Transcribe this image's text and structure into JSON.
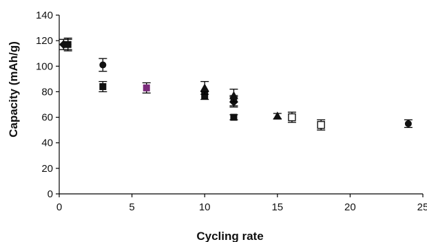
{
  "chart_data": {
    "type": "scatter",
    "title": "",
    "xlabel": "Cycling rate",
    "ylabel": "Capacity (mAh/g)",
    "xlim": [
      0,
      25
    ],
    "ylim": [
      0,
      140
    ],
    "x_ticks": [
      0,
      5,
      10,
      15,
      20,
      25
    ],
    "y_ticks": [
      0,
      20,
      40,
      60,
      80,
      100,
      120,
      140
    ],
    "grid": false,
    "legend": "none",
    "series": [
      {
        "marker": "circle",
        "color": "#111111",
        "points": [
          {
            "x": 0.6,
            "y": 117,
            "err": 5
          },
          {
            "x": 3,
            "y": 101,
            "err": 5
          },
          {
            "x": 12,
            "y": 73,
            "err": 4
          },
          {
            "x": 24,
            "y": 55,
            "err": 3
          }
        ]
      },
      {
        "marker": "diamond",
        "color": "#111111",
        "points": [
          {
            "x": 0.3,
            "y": 117,
            "err": 4
          },
          {
            "x": 12,
            "y": 72,
            "err": 4
          }
        ]
      },
      {
        "marker": "square",
        "color": "#111111",
        "points": [
          {
            "x": 0.6,
            "y": 117,
            "err": 4
          },
          {
            "x": 3,
            "y": 84,
            "err": 4
          },
          {
            "x": 10,
            "y": 77,
            "err": 3
          },
          {
            "x": 12,
            "y": 60,
            "err": 2
          }
        ]
      },
      {
        "marker": "triangle",
        "color": "#111111",
        "points": [
          {
            "x": 10,
            "y": 83,
            "err": 5
          },
          {
            "x": 12,
            "y": 77,
            "err": 5
          },
          {
            "x": 15,
            "y": 61,
            "err": 2
          }
        ]
      },
      {
        "marker": "square-open",
        "color": "#111111",
        "points": [
          {
            "x": 16,
            "y": 60,
            "err": 4
          },
          {
            "x": 18,
            "y": 54,
            "err": 4
          }
        ]
      },
      {
        "marker": "square",
        "color": "#7a2a7a",
        "points": [
          {
            "x": 6,
            "y": 83,
            "err": 4
          }
        ]
      }
    ]
  }
}
